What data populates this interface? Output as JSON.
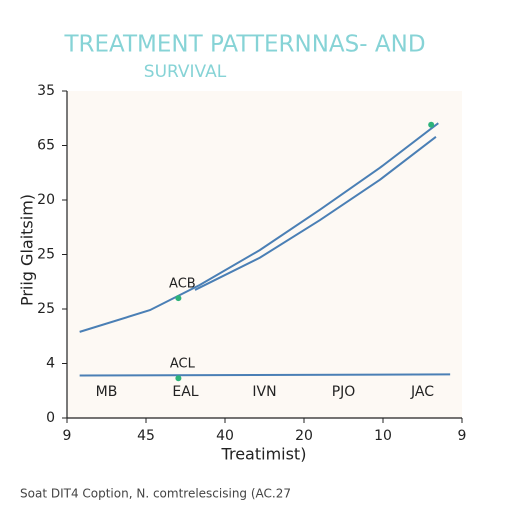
{
  "chart_data": {
    "type": "line",
    "title": "TREATMENT PATTERNNAS- AND",
    "subtitle": "SURVIVAL",
    "x_label": "Treatimist)",
    "y_label": "Priig Glaitsim)",
    "caption": "Soat DIT4 Coption, N. comtrelescising (AC.27",
    "xlim": [
      0,
      5
    ],
    "xticks": [
      {
        "value": 0,
        "label": "9"
      },
      {
        "value": 1,
        "label": "45"
      },
      {
        "value": 2,
        "label": "40"
      },
      {
        "value": 3,
        "label": "20"
      },
      {
        "value": 4,
        "label": "10"
      },
      {
        "value": 5,
        "label": "9"
      }
    ],
    "ylim": [
      0,
      6
    ],
    "yticks": [
      0,
      {
        "value": 1,
        "label": "4"
      },
      {
        "value": 2,
        "label": "25"
      },
      {
        "value": 3,
        "label": "25"
      },
      {
        "value": 4,
        "label": "20"
      },
      {
        "value": 5,
        "label": "65"
      },
      {
        "value": 6,
        "label": "35"
      }
    ],
    "band_labels": [
      "MB",
      "EAL",
      "IVN",
      "PJO",
      "JAC"
    ],
    "series": [
      {
        "color": "#4a7fb5",
        "x": [
          0.16,
          1.05,
          1.68,
          2.44,
          3.2,
          3.96,
          4.7
        ],
        "values": [
          1.58,
          1.98,
          2.44,
          3.08,
          3.82,
          4.59,
          5.41
        ]
      },
      {
        "color": "#4a7fb5",
        "x": [
          1.62,
          2.44,
          3.2,
          3.96,
          4.67
        ],
        "values": [
          2.35,
          2.94,
          3.63,
          4.37,
          5.16
        ]
      },
      {
        "color": "#4a7fb5",
        "x": [
          0.16,
          4.85
        ],
        "values": [
          0.78,
          0.8
        ]
      }
    ],
    "points": {
      "color": "#2db37a",
      "x": [
        4.61,
        1.41,
        1.41
      ],
      "values": [
        5.38,
        2.2,
        0.73
      ],
      "labels": [
        null,
        "ACB",
        "ACL"
      ]
    }
  }
}
